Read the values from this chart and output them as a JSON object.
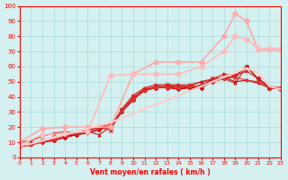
{
  "xlabel": "Vent moyen/en rafales ( km/h )",
  "ylabel": "",
  "xlim": [
    0,
    23
  ],
  "ylim": [
    0,
    100
  ],
  "xticks": [
    0,
    1,
    2,
    3,
    4,
    5,
    6,
    7,
    8,
    9,
    10,
    11,
    12,
    13,
    14,
    15,
    16,
    17,
    18,
    19,
    20,
    21,
    22,
    23
  ],
  "yticks": [
    0,
    10,
    20,
    30,
    40,
    50,
    60,
    70,
    80,
    90,
    100
  ],
  "bg_color": "#d4f0f0",
  "grid_color": "#aadddd",
  "lines": [
    {
      "x": [
        0,
        1,
        2,
        3,
        4,
        5,
        6,
        7,
        8,
        9,
        10,
        11,
        12,
        13,
        14,
        15,
        16,
        17,
        18,
        19,
        20,
        21,
        22,
        23
      ],
      "y": [
        8,
        9,
        10,
        11,
        13,
        15,
        17,
        19,
        20,
        30,
        38,
        45,
        46,
        46,
        45,
        46,
        46,
        50,
        52,
        54,
        60,
        52,
        46,
        46
      ],
      "color": "#cc0000",
      "lw": 0.8,
      "marker": "D",
      "ms": 2
    },
    {
      "x": [
        0,
        1,
        2,
        3,
        4,
        5,
        6,
        7,
        8,
        9,
        10,
        11,
        12,
        13,
        14,
        15,
        16,
        17,
        18,
        19,
        20,
        21,
        22,
        23
      ],
      "y": [
        8,
        9,
        10,
        12,
        14,
        15,
        16,
        18,
        21,
        30,
        39,
        44,
        46,
        47,
        46,
        46,
        48,
        51,
        53,
        50,
        51,
        49,
        46,
        45
      ],
      "color": "#cc0000",
      "lw": 0.8,
      "marker": "+",
      "ms": 3
    },
    {
      "x": [
        0,
        1,
        2,
        3,
        4,
        5,
        6,
        7,
        8,
        9,
        10,
        11,
        12,
        13,
        14,
        15,
        16,
        17,
        18,
        19,
        20,
        21,
        22,
        23
      ],
      "y": [
        8,
        9,
        11,
        13,
        15,
        16,
        18,
        20,
        18,
        31,
        40,
        45,
        47,
        48,
        47,
        47,
        47,
        52,
        53,
        53,
        60,
        52,
        46,
        45
      ],
      "color": "#dd2222",
      "lw": 0.8,
      "marker": "x",
      "ms": 3
    },
    {
      "x": [
        0,
        1,
        2,
        3,
        4,
        5,
        6,
        7,
        8,
        9,
        10,
        11,
        12,
        13,
        14,
        15,
        16,
        17,
        18,
        19,
        20,
        21,
        22,
        23
      ],
      "y": [
        7,
        9,
        10,
        12,
        14,
        16,
        18,
        21,
        20,
        32,
        41,
        46,
        48,
        48,
        48,
        48,
        50,
        52,
        55,
        54,
        57,
        52,
        47,
        46
      ],
      "color": "#dd2222",
      "lw": 0.8,
      "marker": ">",
      "ms": 2
    },
    {
      "x": [
        0,
        1,
        2,
        3,
        4,
        5,
        6,
        7,
        8,
        9,
        10,
        11,
        12,
        13,
        14,
        15,
        16,
        17,
        18,
        19,
        20,
        21,
        22,
        23
      ],
      "y": [
        10,
        11,
        14,
        16,
        17,
        16,
        17,
        15,
        20,
        30,
        38,
        45,
        46,
        47,
        47,
        47,
        50,
        51,
        52,
        49,
        60,
        52,
        47,
        45
      ],
      "color": "#cc2222",
      "lw": 0.8,
      "marker": "^",
      "ms": 2
    },
    {
      "x": [
        0,
        1,
        2,
        3,
        4,
        5,
        6,
        7,
        8,
        9,
        10,
        11,
        12,
        13,
        14,
        15,
        16,
        17,
        18,
        19,
        20,
        21,
        22,
        23
      ],
      "y": [
        7,
        8,
        10,
        12,
        14,
        16,
        18,
        20,
        22,
        30,
        38,
        44,
        46,
        46,
        46,
        47,
        47,
        50,
        52,
        53,
        51,
        50,
        47,
        46
      ],
      "color": "#dd3333",
      "lw": 0.8,
      "marker": "s",
      "ms": 2
    },
    {
      "x": [
        0,
        2,
        4,
        6,
        8,
        10,
        12,
        14,
        16,
        18,
        19,
        20,
        21,
        22,
        23
      ],
      "y": [
        10,
        19,
        20,
        20,
        20,
        55,
        63,
        63,
        63,
        80,
        95,
        90,
        71,
        71,
        71
      ],
      "color": "#ffaaaa",
      "lw": 1.2,
      "marker": "D",
      "ms": 3
    },
    {
      "x": [
        0,
        2,
        4,
        6,
        8,
        10,
        12,
        14,
        16,
        18,
        19,
        20,
        21,
        22,
        23
      ],
      "y": [
        8,
        15,
        16,
        17,
        54,
        55,
        55,
        55,
        60,
        70,
        80,
        78,
        72,
        72,
        72
      ],
      "color": "#ffbbbb",
      "lw": 1.2,
      "marker": "D",
      "ms": 3
    },
    {
      "x": [
        0,
        1,
        2,
        3,
        4,
        5,
        6,
        7,
        8,
        9,
        10,
        11,
        12,
        13,
        14,
        15,
        16,
        17,
        18,
        19,
        20,
        21,
        22,
        23
      ],
      "y": [
        8,
        9,
        11,
        13,
        15,
        17,
        19,
        21,
        23,
        26,
        29,
        32,
        35,
        38,
        41,
        44,
        47,
        50,
        53,
        56,
        59,
        56,
        47,
        45
      ],
      "color": "#ffcccc",
      "lw": 1.5,
      "marker": null,
      "ms": 0
    }
  ]
}
